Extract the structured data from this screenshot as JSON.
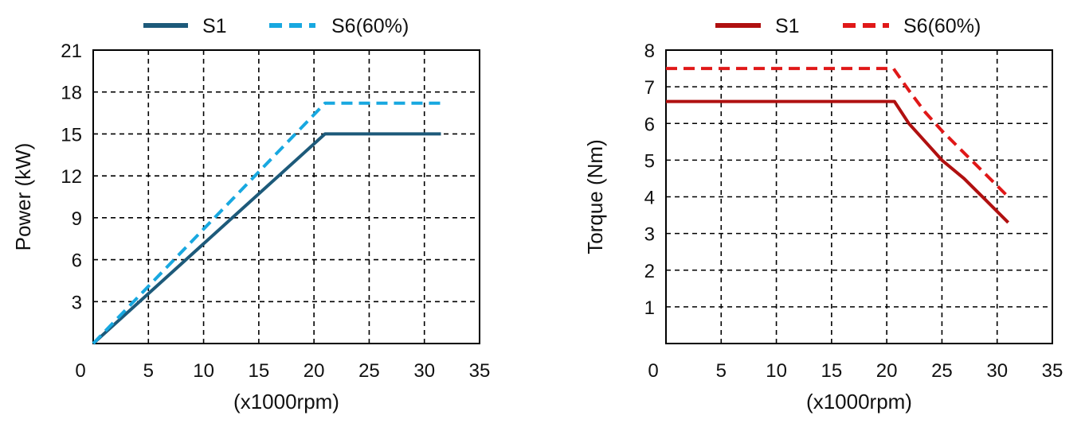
{
  "chart_data": [
    {
      "type": "line",
      "xlabel": "(x1000rpm)",
      "ylabel": "Power (kW)",
      "xlim": [
        0,
        35
      ],
      "ylim": [
        0,
        21
      ],
      "x_ticks": [
        "0",
        "5",
        "10",
        "15",
        "20",
        "25",
        "30",
        "35"
      ],
      "y_ticks": [
        "3",
        "6",
        "9",
        "12",
        "15",
        "18",
        "21"
      ],
      "grid": true,
      "legend_position": "top",
      "series": [
        {
          "name": "S1",
          "color": "#1d5a7a",
          "style": "solid",
          "x": [
            0,
            21,
            31.5
          ],
          "y": [
            0,
            15,
            15
          ]
        },
        {
          "name": "S6(60%)",
          "color": "#18a8e0",
          "style": "dashed",
          "x": [
            0,
            21,
            31.5
          ],
          "y": [
            0,
            17.2,
            17.2
          ]
        }
      ]
    },
    {
      "type": "line",
      "xlabel": "(x1000rpm)",
      "ylabel": "Torque  (Nm)",
      "xlim": [
        0,
        35
      ],
      "ylim": [
        0,
        8
      ],
      "x_ticks": [
        "0",
        "5",
        "10",
        "15",
        "20",
        "25",
        "30",
        "35"
      ],
      "y_ticks": [
        "1",
        "2",
        "3",
        "4",
        "5",
        "6",
        "7",
        "8"
      ],
      "grid": true,
      "legend_position": "top",
      "series": [
        {
          "name": "S1",
          "color": "#b01010",
          "style": "solid",
          "x": [
            0,
            20.7,
            22,
            23.5,
            25,
            27,
            29,
            31
          ],
          "y": [
            6.6,
            6.6,
            6.0,
            5.5,
            5.0,
            4.5,
            3.9,
            3.3
          ]
        },
        {
          "name": "S6(60%)",
          "color": "#e01818",
          "style": "dashed",
          "x": [
            0,
            20.6,
            22,
            23.5,
            25,
            27,
            29,
            31
          ],
          "y": [
            7.5,
            7.5,
            6.9,
            6.3,
            5.8,
            5.2,
            4.6,
            4.0
          ]
        }
      ]
    }
  ]
}
